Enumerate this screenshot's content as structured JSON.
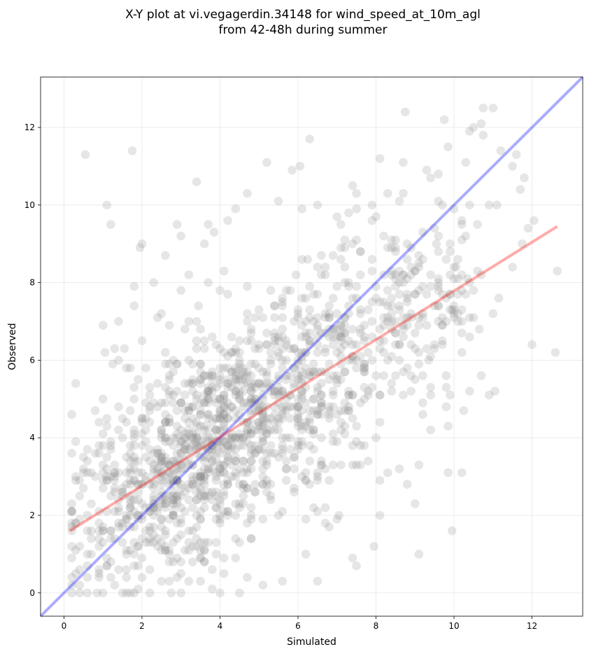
{
  "chart_data": {
    "type": "scatter",
    "title_line1": "X-Y plot at vi.vegagerdin.34148 for wind_speed_at_10m_agl",
    "title_line2": "from 42-48h during summer",
    "xlabel": "Simulated",
    "ylabel": "Observed",
    "xlim": [
      -0.6,
      13.3
    ],
    "ylim": [
      -0.6,
      13.3
    ],
    "xticks": [
      0,
      2,
      4,
      6,
      8,
      10,
      12
    ],
    "yticks": [
      0,
      2,
      4,
      6,
      8,
      10,
      12
    ],
    "grid": true,
    "point_color": "#808080",
    "identity_line_color": "#0000ff",
    "fit_line_color": "#ff0000",
    "identity_line": [
      [
        -0.6,
        -0.6
      ],
      [
        13.3,
        13.3
      ]
    ],
    "fit_line": [
      [
        0.15,
        1.6
      ],
      [
        12.65,
        9.45
      ]
    ],
    "outlier_points": [
      [
        0.55,
        11.3
      ],
      [
        1.75,
        11.4
      ],
      [
        1.1,
        10.0
      ],
      [
        1.2,
        9.5
      ],
      [
        1.95,
        8.9
      ],
      [
        2.0,
        9.0
      ],
      [
        3.4,
        10.6
      ],
      [
        4.1,
        8.3
      ],
      [
        4.2,
        9.6
      ],
      [
        4.4,
        9.9
      ],
      [
        4.7,
        10.3
      ],
      [
        5.2,
        11.1
      ],
      [
        5.5,
        10.1
      ],
      [
        5.85,
        10.9
      ],
      [
        6.05,
        11.0
      ],
      [
        6.1,
        9.9
      ],
      [
        6.5,
        10.0
      ],
      [
        7.0,
        9.7
      ],
      [
        7.4,
        10.5
      ],
      [
        7.5,
        10.3
      ],
      [
        8.0,
        9.7
      ],
      [
        8.75,
        12.4
      ],
      [
        8.5,
        9.1
      ],
      [
        9.2,
        9.3
      ],
      [
        9.3,
        10.9
      ],
      [
        9.75,
        12.2
      ],
      [
        9.85,
        11.5
      ],
      [
        10.3,
        11.1
      ],
      [
        10.4,
        11.9
      ],
      [
        10.5,
        12.0
      ],
      [
        10.7,
        12.1
      ],
      [
        10.75,
        11.8
      ],
      [
        10.75,
        12.5
      ],
      [
        11.0,
        12.5
      ],
      [
        11.2,
        11.4
      ],
      [
        11.5,
        11.0
      ],
      [
        11.6,
        11.3
      ],
      [
        11.7,
        10.4
      ],
      [
        11.8,
        10.7
      ],
      [
        12.05,
        9.6
      ],
      [
        11.1,
        10.0
      ],
      [
        10.9,
        10.0
      ],
      [
        10.6,
        9.5
      ],
      [
        10.3,
        9.2
      ],
      [
        10.05,
        8.4
      ],
      [
        10.35,
        8.1
      ],
      [
        10.6,
        8.3
      ],
      [
        11.0,
        7.2
      ],
      [
        11.15,
        7.6
      ],
      [
        10.65,
        6.8
      ],
      [
        10.7,
        5.6
      ],
      [
        10.9,
        5.1
      ],
      [
        11.05,
        5.2
      ],
      [
        12.0,
        6.4
      ],
      [
        12.6,
        6.2
      ],
      [
        12.65,
        8.3
      ],
      [
        11.5,
        8.4
      ],
      [
        11.75,
        9.0
      ],
      [
        11.9,
        9.4
      ],
      [
        10.2,
        7.3
      ],
      [
        9.95,
        7.3
      ],
      [
        9.85,
        4.3
      ],
      [
        9.85,
        3.1
      ],
      [
        10.2,
        3.1
      ],
      [
        10.25,
        4.7
      ],
      [
        9.95,
        1.6
      ],
      [
        9.1,
        1.0
      ],
      [
        9.0,
        2.3
      ],
      [
        8.8,
        2.8
      ],
      [
        9.4,
        4.2
      ],
      [
        9.1,
        3.3
      ],
      [
        0.2,
        0.0
      ],
      [
        0.4,
        0.0
      ],
      [
        0.6,
        0.0
      ],
      [
        0.85,
        0.0
      ],
      [
        1.5,
        0.0
      ],
      [
        2.2,
        0.0
      ],
      [
        2.75,
        0.0
      ],
      [
        4.0,
        0.0
      ],
      [
        4.5,
        0.0
      ],
      [
        5.1,
        0.2
      ],
      [
        5.6,
        0.3
      ],
      [
        6.5,
        0.3
      ],
      [
        7.4,
        0.9
      ],
      [
        7.5,
        0.7
      ],
      [
        7.95,
        1.2
      ],
      [
        8.1,
        2.0
      ],
      [
        3.8,
        0.1
      ],
      [
        3.2,
        0.3
      ],
      [
        6.8,
        1.7
      ],
      [
        7.05,
        2.0
      ],
      [
        8.2,
        7.5
      ],
      [
        8.4,
        8.2
      ],
      [
        8.6,
        6.0
      ],
      [
        8.3,
        8.9
      ],
      [
        9.55,
        9.0
      ],
      [
        9.6,
        8.0
      ],
      [
        9.5,
        6.3
      ],
      [
        9.35,
        6.0
      ],
      [
        8.9,
        5.2
      ],
      [
        1.05,
        6.2
      ],
      [
        1.25,
        5.9
      ],
      [
        1.4,
        7.0
      ],
      [
        1.55,
        6.3
      ],
      [
        1.8,
        7.9
      ],
      [
        2.3,
        8.0
      ],
      [
        2.4,
        7.1
      ],
      [
        2.6,
        8.7
      ],
      [
        2.7,
        6.9
      ],
      [
        2.9,
        9.5
      ],
      [
        3.0,
        7.8
      ],
      [
        3.2,
        8.2
      ],
      [
        3.6,
        9.0
      ],
      [
        3.7,
        9.5
      ],
      [
        3.85,
        9.3
      ],
      [
        3.0,
        9.2
      ],
      [
        3.45,
        7.4
      ],
      [
        3.7,
        8.0
      ],
      [
        5.95,
        8.2
      ],
      [
        6.25,
        8.6
      ]
    ]
  }
}
